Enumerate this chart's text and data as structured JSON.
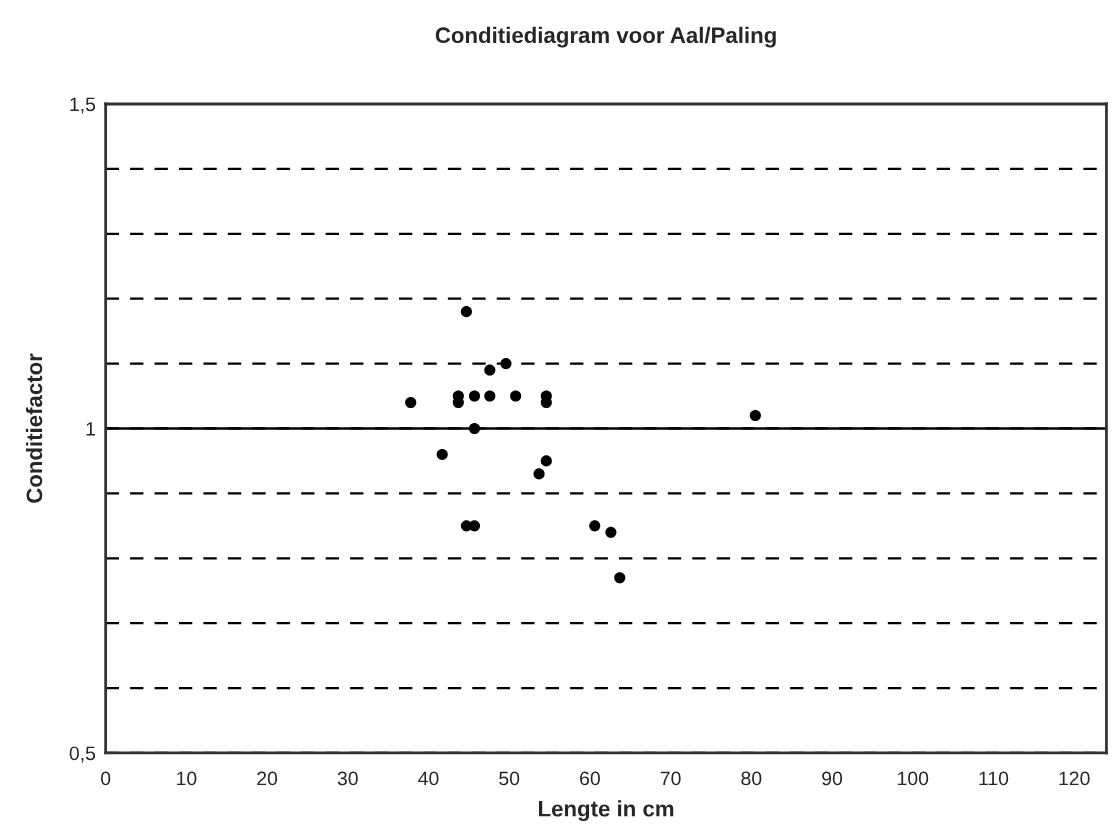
{
  "chart_data": {
    "type": "scatter",
    "title": "Conditiediagram voor Aal/Paling",
    "xlabel": "Lengte in cm",
    "ylabel": "Conditiefactor",
    "series": [
      {
        "color": "#000000",
        "x": [
          37.8,
          44.7,
          43.7,
          43.7,
          45.7,
          45.7,
          47.6,
          47.6,
          49.6,
          50.8,
          54.6,
          54.6,
          54.6,
          53.7,
          41.7,
          44.7,
          45.7,
          60.6,
          62.6,
          63.7,
          80.5
        ],
        "values": [
          1.04,
          1.18,
          1.05,
          1.04,
          1.05,
          1.0,
          1.09,
          1.05,
          1.1,
          1.05,
          1.05,
          1.04,
          0.95,
          0.93,
          0.96,
          0.85,
          0.85,
          0.85,
          0.84,
          0.77,
          1.02
        ]
      }
    ],
    "marker": "circle",
    "xlim": [
      0,
      124
    ],
    "xticks": [
      0,
      10,
      20,
      30,
      40,
      50,
      60,
      70,
      80,
      90,
      100,
      110,
      120
    ],
    "ylim": [
      0.5,
      1.5
    ],
    "yticks": [
      {
        "value": 0.5,
        "label": "0,5"
      },
      {
        "value": 0.6,
        "label": null
      },
      {
        "value": 0.7,
        "label": null
      },
      {
        "value": 0.8,
        "label": null
      },
      {
        "value": 0.9,
        "label": null
      },
      {
        "value": 1,
        "label": "1"
      },
      {
        "value": 1.1,
        "label": null
      },
      {
        "value": 1.2,
        "label": null
      },
      {
        "value": 1.3,
        "label": null
      },
      {
        "value": 1.4,
        "label": null
      },
      {
        "value": 1.5,
        "label": "1,5"
      }
    ],
    "grid": "y",
    "line_style": "dashed",
    "ref_lines": [
      {
        "axis": "y",
        "value": 1,
        "color": "#000000",
        "line_style": "solid"
      }
    ]
  }
}
